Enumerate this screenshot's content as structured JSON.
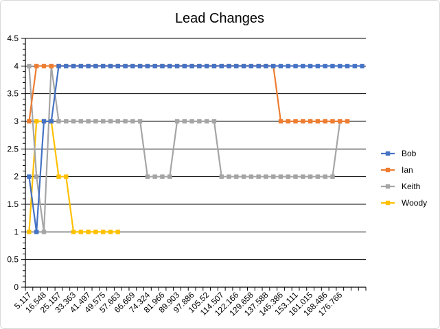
{
  "chart_data": {
    "type": "line",
    "title": "Lead Changes",
    "xlabel": "",
    "ylabel": "",
    "ylim": [
      0,
      4.5
    ],
    "yticks": [
      "0",
      "0.5",
      "1",
      "1.5",
      "2",
      "2.5",
      "3",
      "3.5",
      "4",
      "4.5"
    ],
    "x_tick_labels": [
      "5.117",
      "16.548",
      "25.157",
      "33.363",
      "41.497",
      "49.575",
      "57.663",
      "66.669",
      "74.324",
      "81.966",
      "89.903",
      "97.886",
      "105.52",
      "114.507",
      "122.166",
      "129.658",
      "137.588",
      "145.386",
      "153.111",
      "161.015",
      "168.486",
      "176.766"
    ],
    "grid": "horizontal",
    "legend_position": "right",
    "series": [
      {
        "name": "Bob",
        "color": "#4472c4",
        "values": [
          2,
          1,
          3,
          3,
          4,
          4,
          4,
          4,
          4,
          4,
          4,
          4,
          4,
          4,
          4,
          4,
          4,
          4,
          4,
          4,
          4,
          4,
          4,
          4,
          4,
          4,
          4,
          4,
          4,
          4,
          4,
          4,
          4,
          4,
          4,
          4,
          4,
          4,
          4,
          4,
          4,
          4,
          4,
          4,
          4,
          4
        ]
      },
      {
        "name": "Ian",
        "color": "#ed7d31",
        "values": [
          3,
          4,
          4,
          4,
          4,
          4,
          4,
          4,
          4,
          4,
          4,
          4,
          4,
          4,
          4,
          4,
          4,
          4,
          4,
          4,
          4,
          4,
          4,
          4,
          4,
          4,
          4,
          4,
          4,
          4,
          4,
          4,
          4,
          4,
          3,
          3,
          3,
          3,
          3,
          3,
          3,
          3,
          3,
          3
        ]
      },
      {
        "name": "Keith",
        "color": "#a5a5a5",
        "values": [
          4,
          2,
          1,
          4,
          3,
          3,
          3,
          3,
          3,
          3,
          3,
          3,
          3,
          3,
          3,
          3,
          2,
          2,
          2,
          2,
          3,
          3,
          3,
          3,
          3,
          3,
          2,
          2,
          2,
          2,
          2,
          2,
          2,
          2,
          2,
          2,
          2,
          2,
          2,
          2,
          2,
          2,
          3
        ]
      },
      {
        "name": "Woody",
        "color": "#ffc000",
        "values": [
          1,
          3,
          3,
          3,
          2,
          2,
          1,
          1,
          1,
          1,
          1,
          1,
          1
        ]
      }
    ]
  }
}
